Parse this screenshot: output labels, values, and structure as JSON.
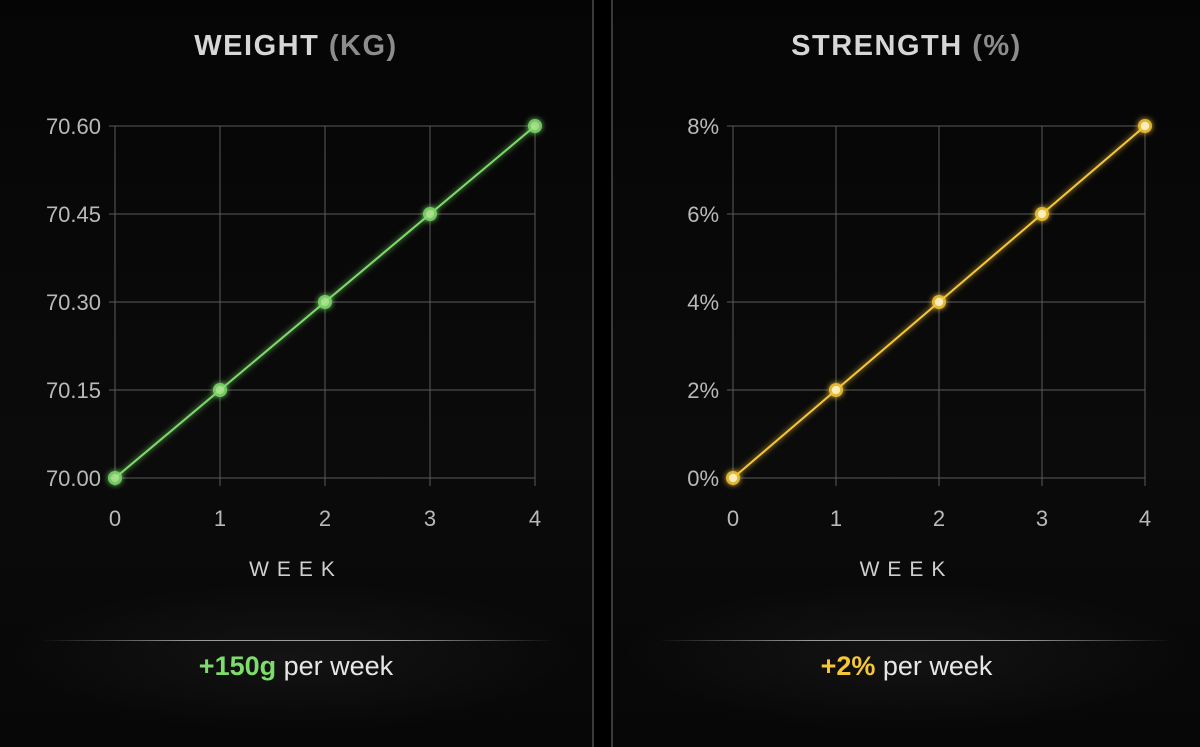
{
  "colors": {
    "weight_accent": "#7ddc6a",
    "strength_accent": "#f5c638",
    "grid": "#5a5a5a",
    "text": "#e6e6e6"
  },
  "panels": [
    {
      "title_main": "WEIGHT",
      "title_unit": "(KG)",
      "xlabel": "WEEK",
      "summary_rate": "+150g",
      "summary_text": "per week"
    },
    {
      "title_main": "STRENGTH",
      "title_unit": "(%)",
      "xlabel": "WEEK",
      "summary_rate": "+2%",
      "summary_text": "per week"
    }
  ],
  "chart_data": [
    {
      "type": "line",
      "title": "WEIGHT (KG)",
      "xlabel": "WEEK",
      "ylabel": "",
      "x": [
        0,
        1,
        2,
        3,
        4
      ],
      "y_ticks": [
        "70.00",
        "70.15",
        "70.30",
        "70.45",
        "70.60"
      ],
      "x_ticks": [
        "0",
        "1",
        "2",
        "3",
        "4"
      ],
      "xlim": [
        0,
        4
      ],
      "ylim": [
        70.0,
        70.6
      ],
      "grid": true,
      "series": [
        {
          "values": [
            70.0,
            70.15,
            70.3,
            70.45,
            70.6
          ],
          "color": "#7ddc6a"
        }
      ]
    },
    {
      "type": "line",
      "title": "STRENGTH (%)",
      "xlabel": "WEEK",
      "ylabel": "",
      "x": [
        0,
        1,
        2,
        3,
        4
      ],
      "y_ticks": [
        "0%",
        "2%",
        "4%",
        "6%",
        "8%"
      ],
      "x_ticks": [
        "0",
        "1",
        "2",
        "3",
        "4"
      ],
      "xlim": [
        0,
        4
      ],
      "ylim": [
        0,
        8
      ],
      "grid": true,
      "series": [
        {
          "values": [
            0,
            2,
            4,
            6,
            8
          ],
          "color": "#f5c638"
        }
      ]
    }
  ]
}
